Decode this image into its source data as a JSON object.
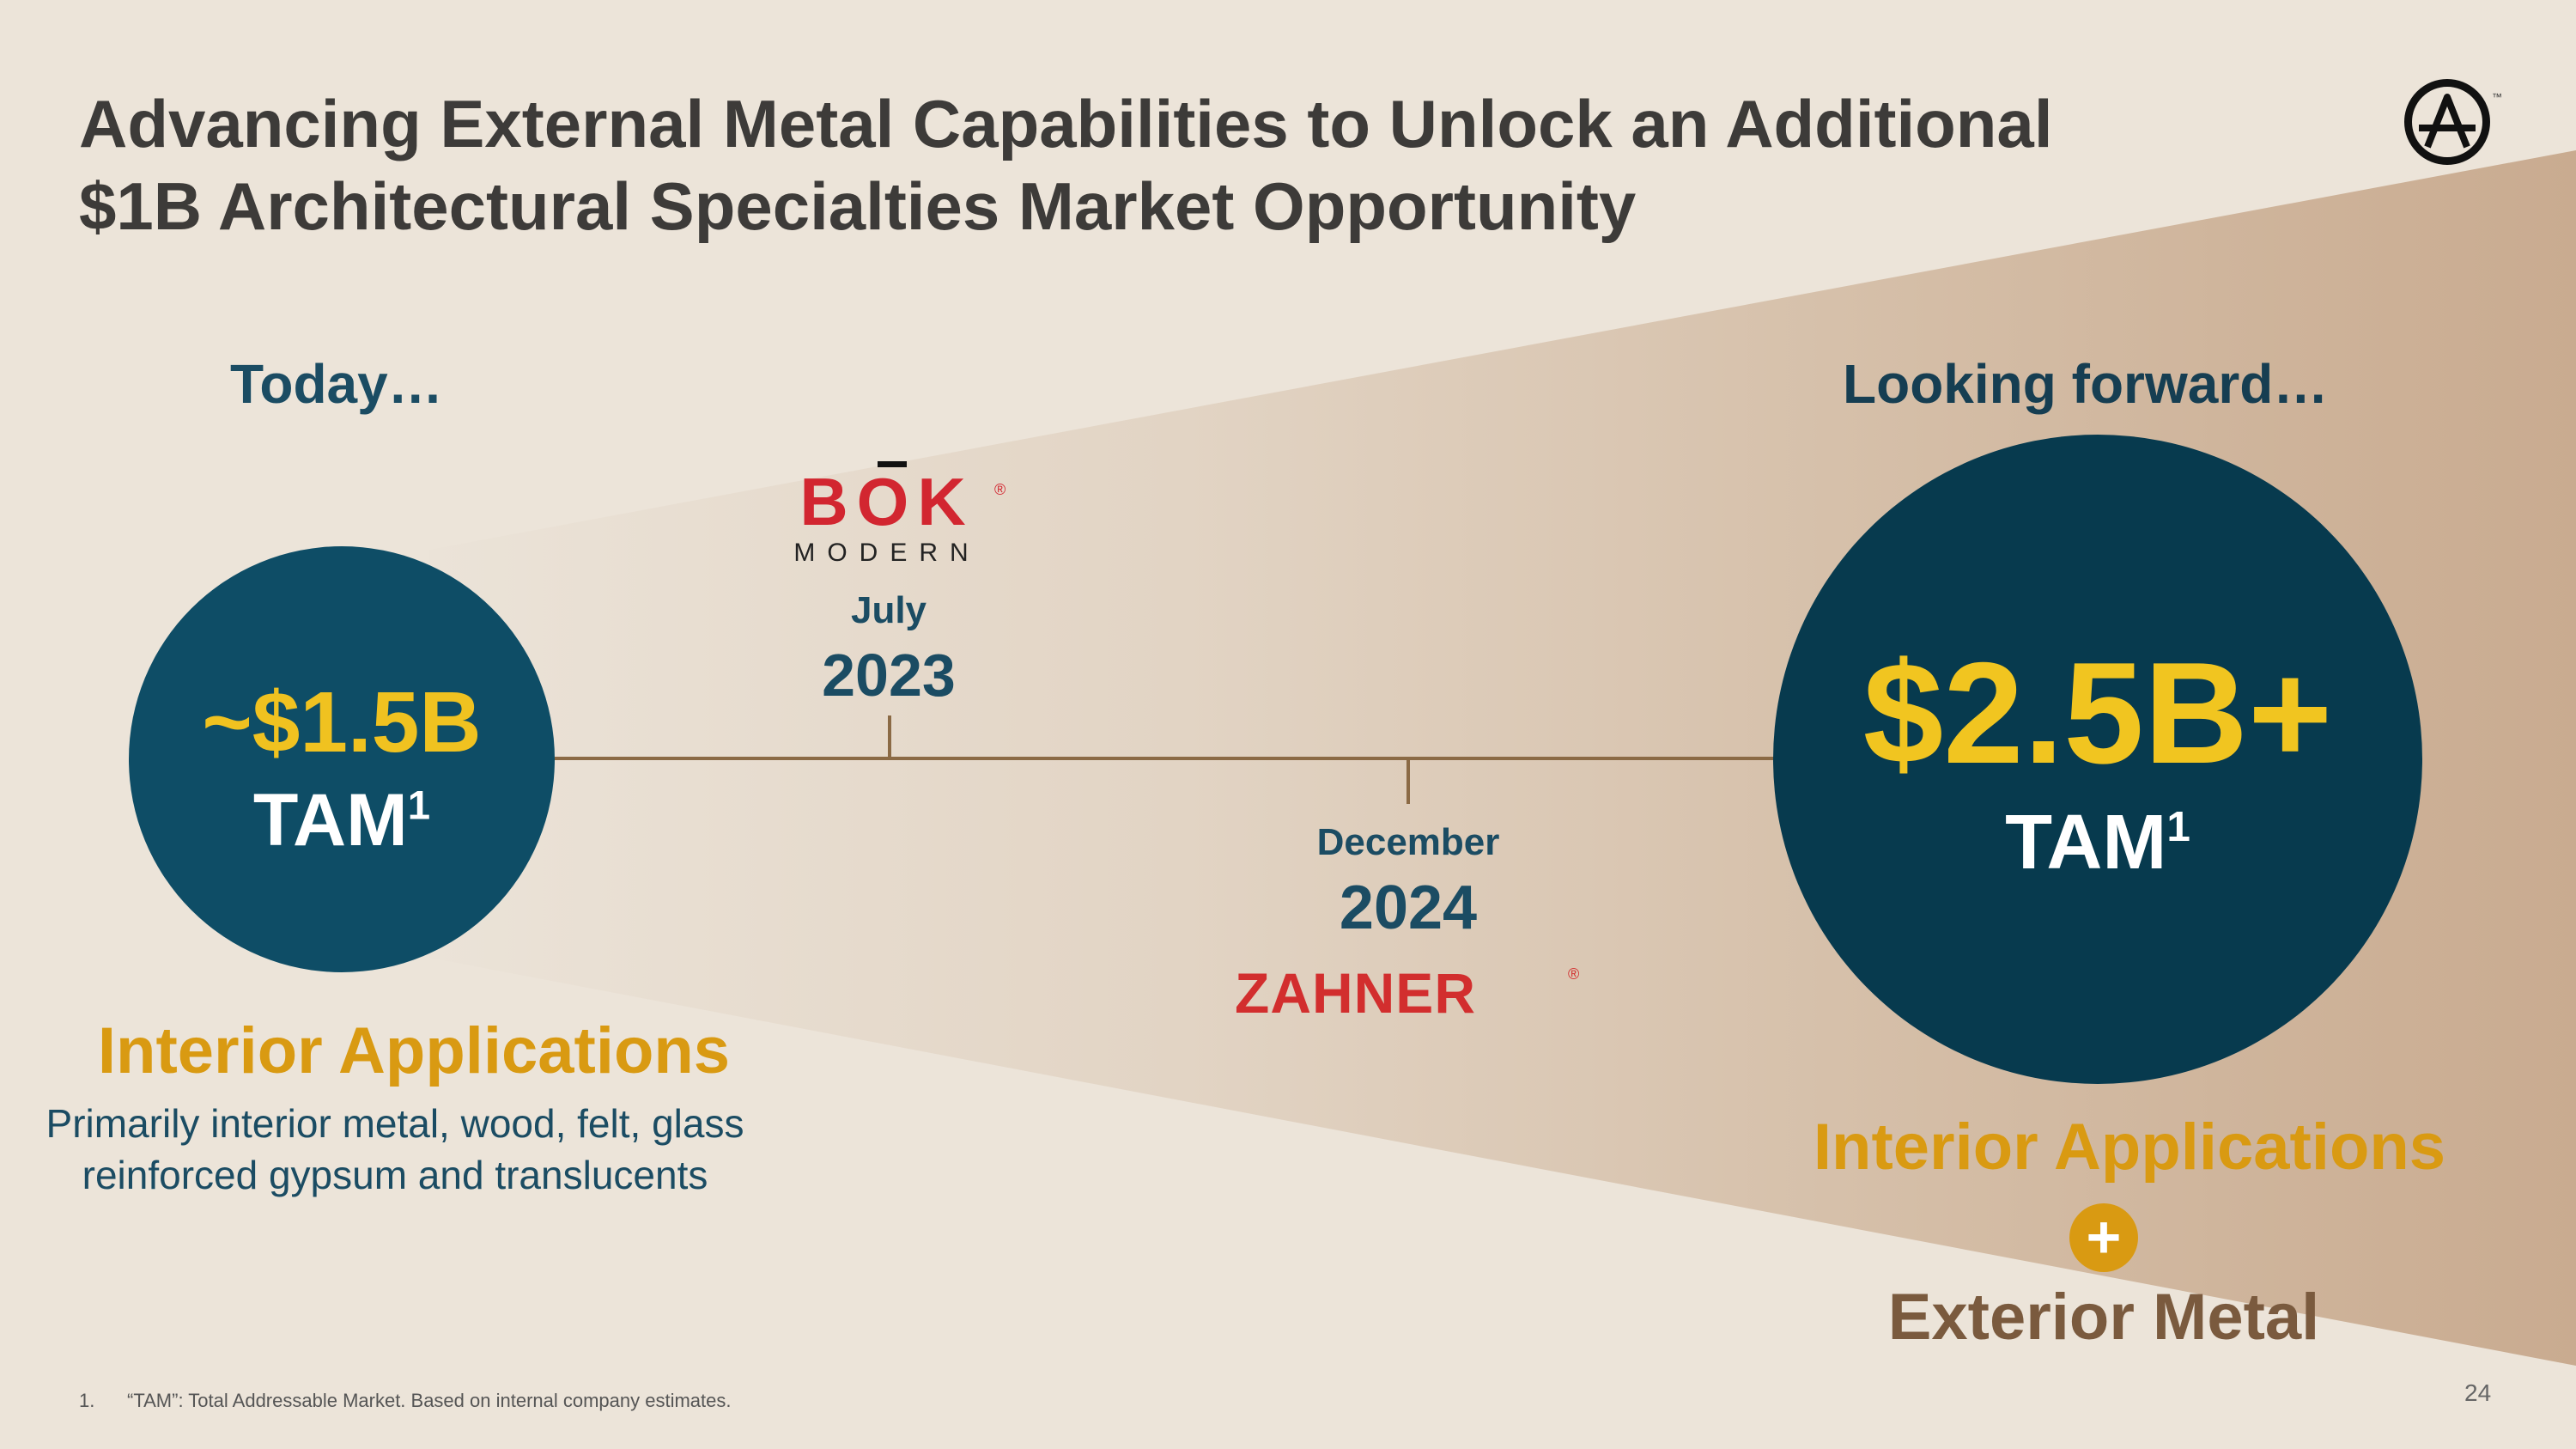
{
  "title": {
    "line1": "Advancing External Metal Capabilities to Unlock an Additional",
    "line2": "$1B Architectural Specialties Market Opportunity"
  },
  "brand": {
    "logo_letter": "A",
    "trademark": "™",
    "icon": "company-logo-icon"
  },
  "today": {
    "heading": "Today…",
    "tam_value": "~$1.5B",
    "tam_label": "TAM",
    "tam_footnote": "1",
    "segment": "Interior Applications",
    "description_line1": "Primarily interior metal, wood, felt, glass",
    "description_line2": "reinforced gypsum and translucents",
    "colors": {
      "circle": "#0e4d66",
      "value": "#f0c220"
    }
  },
  "forward": {
    "heading": "Looking forward…",
    "tam_value": "$2.5B+",
    "tam_label": "TAM",
    "tam_footnote": "1",
    "segment_1": "Interior Applications",
    "plus": "+",
    "segment_2": "Exterior Metal",
    "colors": {
      "circle": "#073a4e",
      "value": "#f1c520"
    }
  },
  "timeline": {
    "events": [
      {
        "month": "July",
        "year": "2023",
        "company_word": "BOK",
        "company_sub": "MODERN",
        "registered": "®"
      },
      {
        "month": "December",
        "year": "2024",
        "company_word": "ZAHNER",
        "registered": "®"
      }
    ]
  },
  "footnote": {
    "number": "1.",
    "text": "“TAM”: Total Addressable Market. Based on internal company estimates."
  },
  "page_number": "24"
}
